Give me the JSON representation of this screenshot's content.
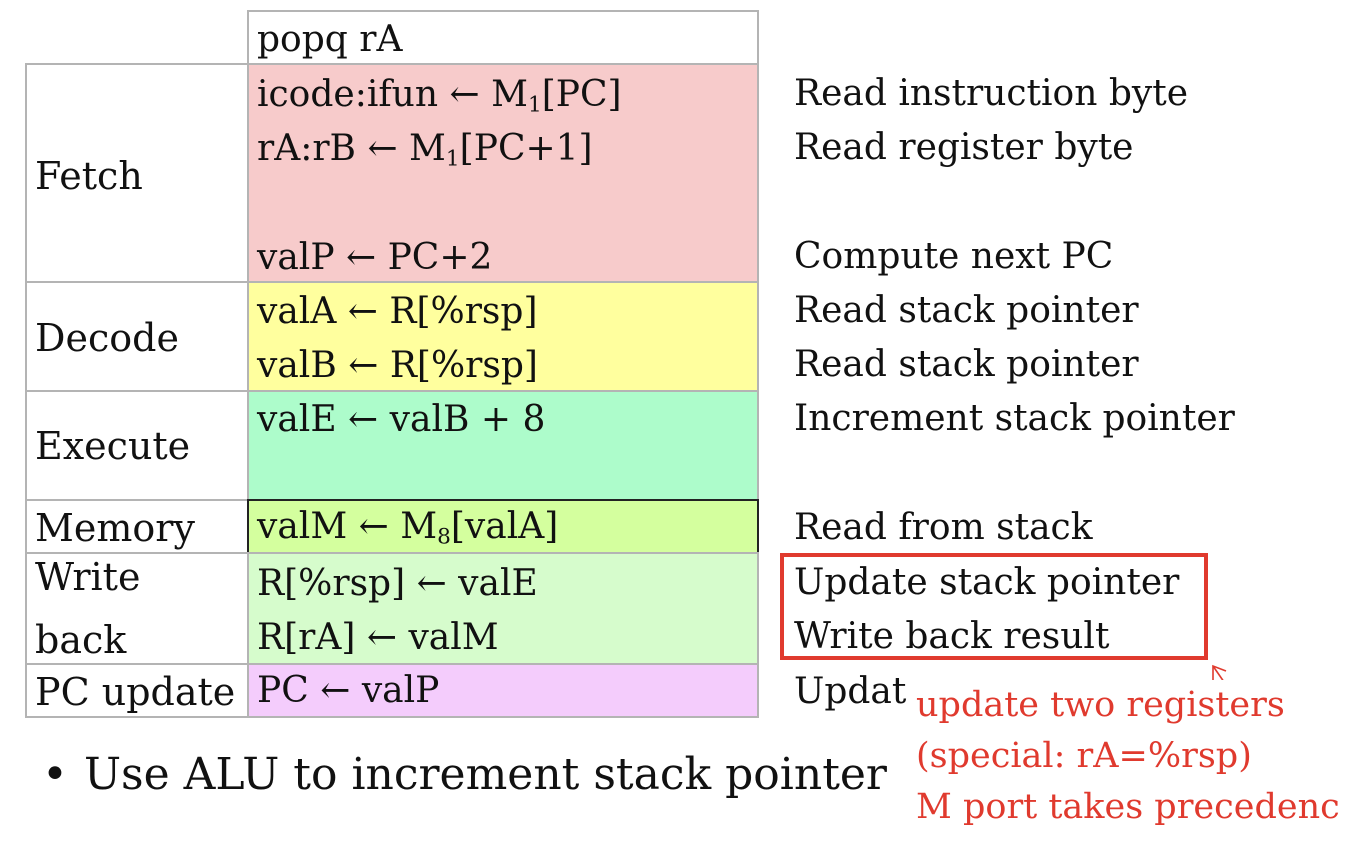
{
  "header": "popq rA",
  "stages": {
    "fetch": "Fetch",
    "decode": "Decode",
    "execute": "Execute",
    "memory": "Memory",
    "writeback_1": "Write",
    "writeback_2": "back",
    "pc_update": "PC update"
  },
  "ops": {
    "fetch_1": "icode:ifun ← M",
    "fetch_1_sub": "1",
    "fetch_1_tail": "[PC]",
    "fetch_2": "rA:rB ← M",
    "fetch_2_sub": "1",
    "fetch_2_tail": "[PC+1]",
    "fetch_3": "valP ← PC+2",
    "decode_1": "valA ← R[%rsp]",
    "decode_2": "valB ← R[%rsp]",
    "execute_1": "valE ← valB + 8",
    "memory_1": "valM ← M",
    "memory_1_sub": "8",
    "memory_1_tail": "[valA]",
    "writeback_1": "R[%rsp] ← valE",
    "writeback_2": "R[rA] ← valM",
    "pc_1": "PC ← valP"
  },
  "comments": {
    "fetch_1": "Read instruction byte",
    "fetch_2": "Read register byte",
    "fetch_3": "Compute next PC",
    "decode_1": "Read stack pointer",
    "decode_2": "Read stack pointer",
    "execute_1": "Increment stack pointer",
    "memory_1": "Read from stack",
    "writeback_1": "Update stack pointer",
    "writeback_2": "Write back result",
    "pc_1": "Updat"
  },
  "bullet": "Use ALU to increment stack pointer",
  "annotation": {
    "line1": "update two registers",
    "line2": "(special: rA=%rsp)",
    "line3": "M port takes precedenc"
  },
  "colors": {
    "fetch": "#f7cbcb",
    "decode": "#ffff9e",
    "execute": "#adfccb",
    "memory": "#d4ff9e",
    "writeback": "#d6fccc",
    "pc_update": "#f4ccfc",
    "grid": "#b4b4b4",
    "accent": "#e03a2e"
  }
}
